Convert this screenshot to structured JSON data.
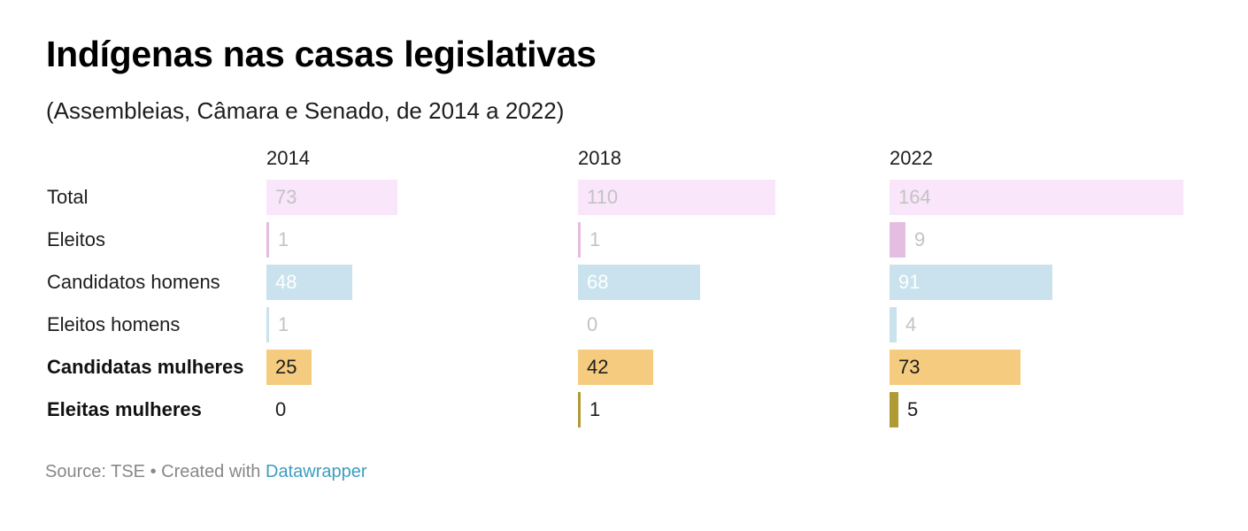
{
  "title": "Indígenas nas casas legislativas",
  "subtitle": "(Assembleias, Câmara e Senado, de 2014 a 2022)",
  "footer": {
    "source": "Source: TSE",
    "separator": " • ",
    "created_with": "Created with ",
    "link_text": "Datawrapper"
  },
  "chart_data": {
    "type": "bar",
    "layout": "small-multiples horizontal bars",
    "columns": [
      "2014",
      "2018",
      "2022"
    ],
    "categories": [
      "Total",
      "Eleitos",
      "Candidatos homens",
      "Eleitos homens",
      "Candidatas mulheres",
      "Eleitas mulheres"
    ],
    "bold_categories": [
      "Candidatas mulheres",
      "Eleitas mulheres"
    ],
    "series": [
      {
        "values": [
          73,
          1,
          48,
          1,
          25,
          0
        ]
      },
      {
        "values": [
          110,
          1,
          68,
          0,
          42,
          1
        ]
      },
      {
        "values": [
          164,
          9,
          91,
          4,
          73,
          5
        ]
      }
    ],
    "xlim": [
      0,
      164
    ],
    "row_colors": [
      "#f9e6fa",
      "#e5bde0",
      "#c9e2ee",
      "#c9e2ee",
      "#f5cc7f",
      "#b09a34"
    ],
    "label_colors": [
      "#c3c3c3",
      "#c3c3c3",
      "#ffffff",
      "#c3c3c3",
      "#1d1d1d",
      "#1d1d1d"
    ]
  }
}
